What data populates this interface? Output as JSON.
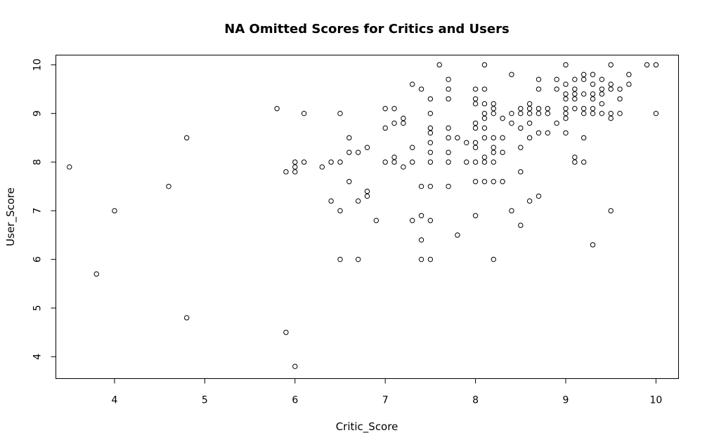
{
  "chart_data": {
    "type": "scatter",
    "title": "NA Omitted Scores for Critics and Users",
    "xlabel": "Critic_Score",
    "ylabel": "User_Score",
    "xlim": [
      3.35,
      10.25
    ],
    "ylim": [
      3.55,
      10.2
    ],
    "xticks": [
      4,
      5,
      6,
      7,
      8,
      9,
      10
    ],
    "yticks": [
      4,
      5,
      6,
      7,
      8,
      9,
      10
    ],
    "grid": false,
    "points": [
      [
        3.5,
        7.9
      ],
      [
        3.8,
        5.7
      ],
      [
        4.0,
        7.0
      ],
      [
        4.6,
        7.5
      ],
      [
        4.8,
        8.5
      ],
      [
        4.8,
        4.8
      ],
      [
        5.8,
        9.1
      ],
      [
        5.9,
        7.8
      ],
      [
        5.9,
        4.5
      ],
      [
        6.0,
        8.0
      ],
      [
        6.0,
        7.9
      ],
      [
        6.0,
        7.8
      ],
      [
        6.0,
        3.8
      ],
      [
        6.1,
        9.0
      ],
      [
        6.1,
        8.0
      ],
      [
        6.3,
        7.9
      ],
      [
        6.4,
        8.0
      ],
      [
        6.4,
        7.2
      ],
      [
        6.5,
        9.0
      ],
      [
        6.5,
        8.0
      ],
      [
        6.5,
        7.0
      ],
      [
        6.5,
        6.0
      ],
      [
        6.6,
        8.5
      ],
      [
        6.6,
        8.2
      ],
      [
        6.6,
        7.6
      ],
      [
        6.7,
        8.2
      ],
      [
        6.7,
        7.2
      ],
      [
        6.7,
        6.0
      ],
      [
        6.8,
        8.3
      ],
      [
        6.8,
        7.4
      ],
      [
        6.8,
        7.3
      ],
      [
        6.9,
        6.8
      ],
      [
        7.0,
        9.1
      ],
      [
        7.0,
        8.7
      ],
      [
        7.0,
        8.0
      ],
      [
        7.1,
        9.1
      ],
      [
        7.1,
        8.8
      ],
      [
        7.1,
        8.1
      ],
      [
        7.1,
        8.0
      ],
      [
        7.2,
        8.9
      ],
      [
        7.2,
        8.8
      ],
      [
        7.2,
        7.9
      ],
      [
        7.3,
        9.6
      ],
      [
        7.3,
        8.3
      ],
      [
        7.3,
        8.0
      ],
      [
        7.3,
        6.8
      ],
      [
        7.4,
        9.5
      ],
      [
        7.4,
        7.5
      ],
      [
        7.4,
        6.9
      ],
      [
        7.4,
        6.4
      ],
      [
        7.4,
        6.0
      ],
      [
        7.5,
        9.3
      ],
      [
        7.5,
        9.0
      ],
      [
        7.5,
        8.7
      ],
      [
        7.5,
        8.6
      ],
      [
        7.5,
        8.4
      ],
      [
        7.5,
        8.2
      ],
      [
        7.5,
        8.0
      ],
      [
        7.5,
        7.5
      ],
      [
        7.5,
        6.8
      ],
      [
        7.5,
        6.0
      ],
      [
        7.6,
        10.0
      ],
      [
        7.7,
        9.7
      ],
      [
        7.7,
        9.5
      ],
      [
        7.7,
        9.3
      ],
      [
        7.7,
        8.7
      ],
      [
        7.7,
        8.5
      ],
      [
        7.7,
        8.2
      ],
      [
        7.7,
        8.0
      ],
      [
        7.7,
        7.5
      ],
      [
        7.8,
        8.5
      ],
      [
        7.8,
        6.5
      ],
      [
        7.9,
        8.4
      ],
      [
        7.9,
        8.0
      ],
      [
        8.0,
        9.5
      ],
      [
        8.0,
        9.3
      ],
      [
        8.0,
        9.2
      ],
      [
        8.0,
        8.8
      ],
      [
        8.0,
        8.7
      ],
      [
        8.0,
        8.4
      ],
      [
        8.0,
        8.3
      ],
      [
        8.0,
        8.0
      ],
      [
        8.0,
        7.6
      ],
      [
        8.0,
        6.9
      ],
      [
        8.1,
        10.0
      ],
      [
        8.1,
        9.5
      ],
      [
        8.1,
        9.2
      ],
      [
        8.1,
        9.0
      ],
      [
        8.1,
        8.9
      ],
      [
        8.1,
        8.7
      ],
      [
        8.1,
        8.5
      ],
      [
        8.1,
        8.1
      ],
      [
        8.1,
        8.0
      ],
      [
        8.1,
        7.6
      ],
      [
        8.2,
        9.2
      ],
      [
        8.2,
        9.1
      ],
      [
        8.2,
        9.0
      ],
      [
        8.2,
        8.5
      ],
      [
        8.2,
        8.3
      ],
      [
        8.2,
        8.2
      ],
      [
        8.2,
        8.0
      ],
      [
        8.2,
        7.6
      ],
      [
        8.2,
        6.0
      ],
      [
        8.3,
        8.9
      ],
      [
        8.3,
        8.5
      ],
      [
        8.3,
        8.2
      ],
      [
        8.3,
        7.6
      ],
      [
        8.4,
        9.8
      ],
      [
        8.4,
        9.0
      ],
      [
        8.4,
        8.8
      ],
      [
        8.4,
        7.0
      ],
      [
        8.5,
        9.1
      ],
      [
        8.5,
        9.0
      ],
      [
        8.5,
        8.7
      ],
      [
        8.5,
        8.3
      ],
      [
        8.5,
        7.8
      ],
      [
        8.5,
        6.7
      ],
      [
        8.6,
        9.2
      ],
      [
        8.6,
        9.1
      ],
      [
        8.6,
        9.0
      ],
      [
        8.6,
        8.8
      ],
      [
        8.6,
        8.5
      ],
      [
        8.6,
        7.2
      ],
      [
        8.7,
        9.7
      ],
      [
        8.7,
        9.5
      ],
      [
        8.7,
        9.1
      ],
      [
        8.7,
        9.0
      ],
      [
        8.7,
        8.6
      ],
      [
        8.7,
        7.3
      ],
      [
        8.8,
        9.1
      ],
      [
        8.8,
        9.0
      ],
      [
        8.8,
        8.6
      ],
      [
        8.9,
        9.7
      ],
      [
        8.9,
        9.5
      ],
      [
        8.9,
        8.8
      ],
      [
        9.0,
        10.0
      ],
      [
        9.0,
        9.6
      ],
      [
        9.0,
        9.4
      ],
      [
        9.0,
        9.3
      ],
      [
        9.0,
        9.1
      ],
      [
        9.0,
        9.0
      ],
      [
        9.0,
        8.9
      ],
      [
        9.0,
        8.6
      ],
      [
        9.1,
        9.7
      ],
      [
        9.1,
        9.5
      ],
      [
        9.1,
        9.4
      ],
      [
        9.1,
        9.3
      ],
      [
        9.1,
        9.1
      ],
      [
        9.1,
        8.1
      ],
      [
        9.1,
        8.0
      ],
      [
        9.2,
        9.8
      ],
      [
        9.2,
        9.7
      ],
      [
        9.2,
        9.4
      ],
      [
        9.2,
        9.1
      ],
      [
        9.2,
        9.0
      ],
      [
        9.2,
        8.5
      ],
      [
        9.2,
        8.0
      ],
      [
        9.3,
        9.8
      ],
      [
        9.3,
        9.6
      ],
      [
        9.3,
        9.4
      ],
      [
        9.3,
        9.3
      ],
      [
        9.3,
        9.1
      ],
      [
        9.3,
        9.0
      ],
      [
        9.3,
        6.3
      ],
      [
        9.4,
        9.7
      ],
      [
        9.4,
        9.5
      ],
      [
        9.4,
        9.4
      ],
      [
        9.4,
        9.2
      ],
      [
        9.4,
        9.0
      ],
      [
        9.5,
        10.0
      ],
      [
        9.5,
        9.6
      ],
      [
        9.5,
        9.5
      ],
      [
        9.5,
        9.0
      ],
      [
        9.5,
        8.9
      ],
      [
        9.5,
        7.0
      ],
      [
        9.6,
        9.5
      ],
      [
        9.6,
        9.3
      ],
      [
        9.6,
        9.0
      ],
      [
        9.7,
        9.8
      ],
      [
        9.7,
        9.6
      ],
      [
        9.9,
        10.0
      ],
      [
        10.0,
        10.0
      ],
      [
        10.0,
        9.0
      ]
    ]
  }
}
